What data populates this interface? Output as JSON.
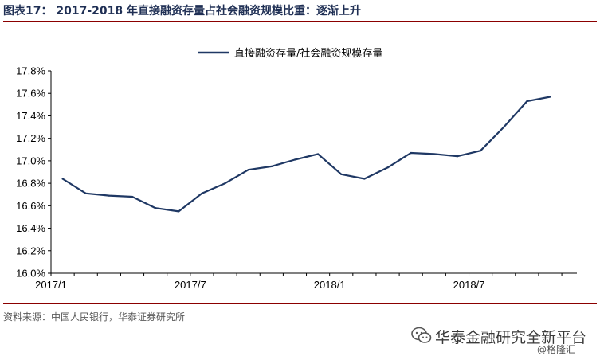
{
  "figure": {
    "label": "图表17：",
    "title": "2017-2018 年直接融资存量占社会融资规模比重：逐渐上升"
  },
  "source": "资料来源：中国人民银行，华泰证券研究所",
  "watermark": {
    "name": "华泰金融研究全新平台",
    "by": "@格隆汇",
    "logo_icon": "wechat-icon"
  },
  "chart_data": {
    "type": "line",
    "title": "2017-2018 年直接融资存量占社会融资规模比重：逐渐上升",
    "xlabel": "",
    "ylabel": "",
    "x": [
      "2017/1",
      "2017/2",
      "2017/3",
      "2017/4",
      "2017/5",
      "2017/6",
      "2017/7",
      "2017/8",
      "2017/9",
      "2017/10",
      "2017/11",
      "2017/12",
      "2018/1",
      "2018/2",
      "2018/3",
      "2018/4",
      "2018/5",
      "2018/6",
      "2018/7",
      "2018/8",
      "2018/9",
      "2018/10"
    ],
    "x_ticks": [
      "2017/1",
      "2017/7",
      "2018/1",
      "2018/7"
    ],
    "y_ticks": [
      "16.0%",
      "16.2%",
      "16.4%",
      "16.6%",
      "16.8%",
      "17.0%",
      "17.2%",
      "17.4%",
      "17.6%",
      "17.8%"
    ],
    "ylim": [
      16.0,
      17.8
    ],
    "y_unit": "%",
    "grid": false,
    "legend_position": "top",
    "series": [
      {
        "name": "直接融资存量/社会融资规模存量",
        "color": "#1f3864",
        "values": [
          16.84,
          16.71,
          16.69,
          16.68,
          16.58,
          16.55,
          16.71,
          16.8,
          16.92,
          16.95,
          17.01,
          17.06,
          16.88,
          16.84,
          16.94,
          17.07,
          17.06,
          17.04,
          17.09,
          17.3,
          17.53,
          17.57
        ]
      }
    ]
  }
}
